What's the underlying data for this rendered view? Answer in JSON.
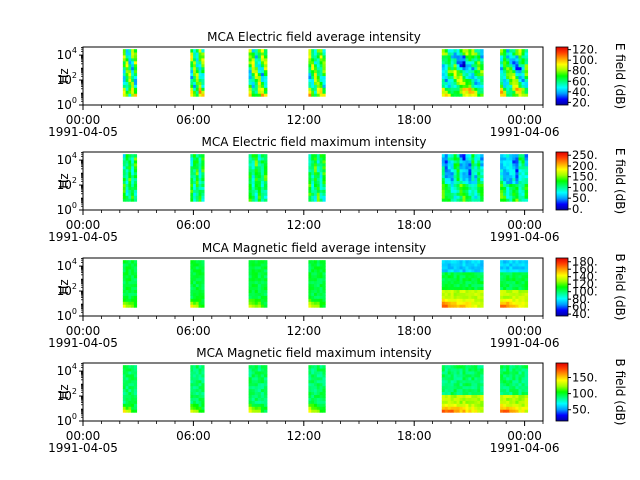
{
  "chart_data": [
    {
      "type": "heatmap",
      "title": "MCA  Electric field average intensity",
      "ylabel": "Hz",
      "colorbar_label": "E field (dB)",
      "colorbar_ticks": [
        "20.",
        "40.",
        "60.",
        "80.",
        "100.",
        "120."
      ],
      "colorbar_range": [
        15,
        125
      ],
      "y_ticks": [
        {
          "base": "10",
          "exp": "0"
        },
        {
          "base": "10",
          "exp": "2"
        },
        {
          "base": "10",
          "exp": "4"
        }
      ],
      "x_ticks": [
        "00:00",
        "06:00",
        "12:00",
        "18:00",
        "00:00"
      ],
      "x_start_date": "1991-04-05",
      "x_end_date": "1991-04-06"
    },
    {
      "type": "heatmap",
      "title": "MCA  Electric field maximum intensity",
      "ylabel": "Hz",
      "colorbar_label": "E field (dB)",
      "colorbar_ticks": [
        "0.",
        "50.",
        "100.",
        "150.",
        "200.",
        "250."
      ],
      "colorbar_range": [
        -5,
        265
      ],
      "y_ticks": [
        {
          "base": "10",
          "exp": "0"
        },
        {
          "base": "10",
          "exp": "2"
        },
        {
          "base": "10",
          "exp": "4"
        }
      ],
      "x_ticks": [
        "00:00",
        "06:00",
        "12:00",
        "18:00",
        "00:00"
      ],
      "x_start_date": "1991-04-05",
      "x_end_date": "1991-04-06"
    },
    {
      "type": "heatmap",
      "title": "MCA  Magnetic field average intensity",
      "ylabel": "Hz",
      "colorbar_label": "B field (dB)",
      "colorbar_ticks": [
        "40.",
        "60.",
        "80.",
        "100.",
        "120.",
        "140.",
        "160.",
        "180."
      ],
      "colorbar_range": [
        35,
        190
      ],
      "y_ticks": [
        {
          "base": "10",
          "exp": "0"
        },
        {
          "base": "10",
          "exp": "2"
        },
        {
          "base": "10",
          "exp": "4"
        }
      ],
      "x_ticks": [
        "00:00",
        "06:00",
        "12:00",
        "18:00",
        "00:00"
      ],
      "x_start_date": "1991-04-05",
      "x_end_date": "1991-04-06"
    },
    {
      "type": "heatmap",
      "title": "MCA  Magnetic field maximum intensity",
      "ylabel": "Hz",
      "colorbar_label": "B field (dB)",
      "colorbar_ticks": [
        "50.",
        "100.",
        "150."
      ],
      "colorbar_range": [
        15,
        195
      ],
      "y_ticks": [
        {
          "base": "10",
          "exp": "0"
        },
        {
          "base": "10",
          "exp": "2"
        },
        {
          "base": "10",
          "exp": "4"
        }
      ],
      "x_ticks": [
        "00:00",
        "06:00",
        "12:00",
        "18:00",
        "00:00"
      ],
      "x_start_date": "1991-04-05",
      "x_end_date": "1991-04-06"
    }
  ],
  "data_intervals": [
    [
      "1991-04-05T02:10",
      "1991-04-05T02:55"
    ],
    [
      "1991-04-05T05:50",
      "1991-04-05T06:35"
    ],
    [
      "1991-04-05T09:00",
      "1991-04-05T10:00"
    ],
    [
      "1991-04-05T12:15",
      "1991-04-05T13:10"
    ],
    [
      "1991-04-05T19:30",
      "1991-04-05T21:45"
    ],
    [
      "1991-04-05T22:40",
      "1991-04-06T00:10"
    ]
  ],
  "frequency_range_hz": [
    5,
    30000
  ],
  "colormap": [
    "#0000a0",
    "#0000ff",
    "#00a0ff",
    "#00ffff",
    "#00ff80",
    "#00ff00",
    "#a0ff00",
    "#ffff00",
    "#ffa000",
    "#ff4000",
    "#e00000"
  ]
}
